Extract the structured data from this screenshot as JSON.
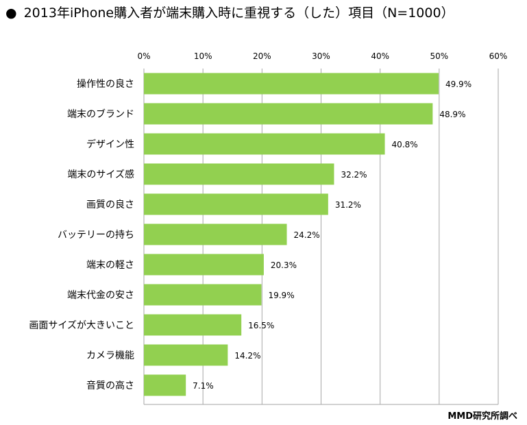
{
  "header": {
    "bullet": "●",
    "title": "2013年iPhone購入者が端末購入時に重視する（した）項目（N=1000）"
  },
  "footer": {
    "source": "MMD研究所調べ"
  },
  "chart_data": {
    "type": "bar",
    "orientation": "horizontal",
    "categories": [
      "操作性の良さ",
      "端末のブランド",
      "デザイン性",
      "端末のサイズ感",
      "画質の良さ",
      "バッテリーの持ち",
      "端末の軽さ",
      "端末代金の安さ",
      "画面サイズが大きいこと",
      "カメラ機能",
      "音質の高さ"
    ],
    "values": [
      49.9,
      48.9,
      40.8,
      32.2,
      31.2,
      24.2,
      20.3,
      19.9,
      16.5,
      14.2,
      7.1
    ],
    "value_labels": [
      "49.9%",
      "48.9%",
      "40.8%",
      "32.2%",
      "31.2%",
      "24.2%",
      "20.3%",
      "19.9%",
      "16.5%",
      "14.2%",
      "7.1%"
    ],
    "xticks": [
      "0%",
      "10%",
      "20%",
      "30%",
      "40%",
      "50%",
      "60%"
    ],
    "xlim": [
      0,
      60
    ],
    "grid": true,
    "bar_color": "#92d050",
    "grid_color": "#a6a6a6"
  }
}
